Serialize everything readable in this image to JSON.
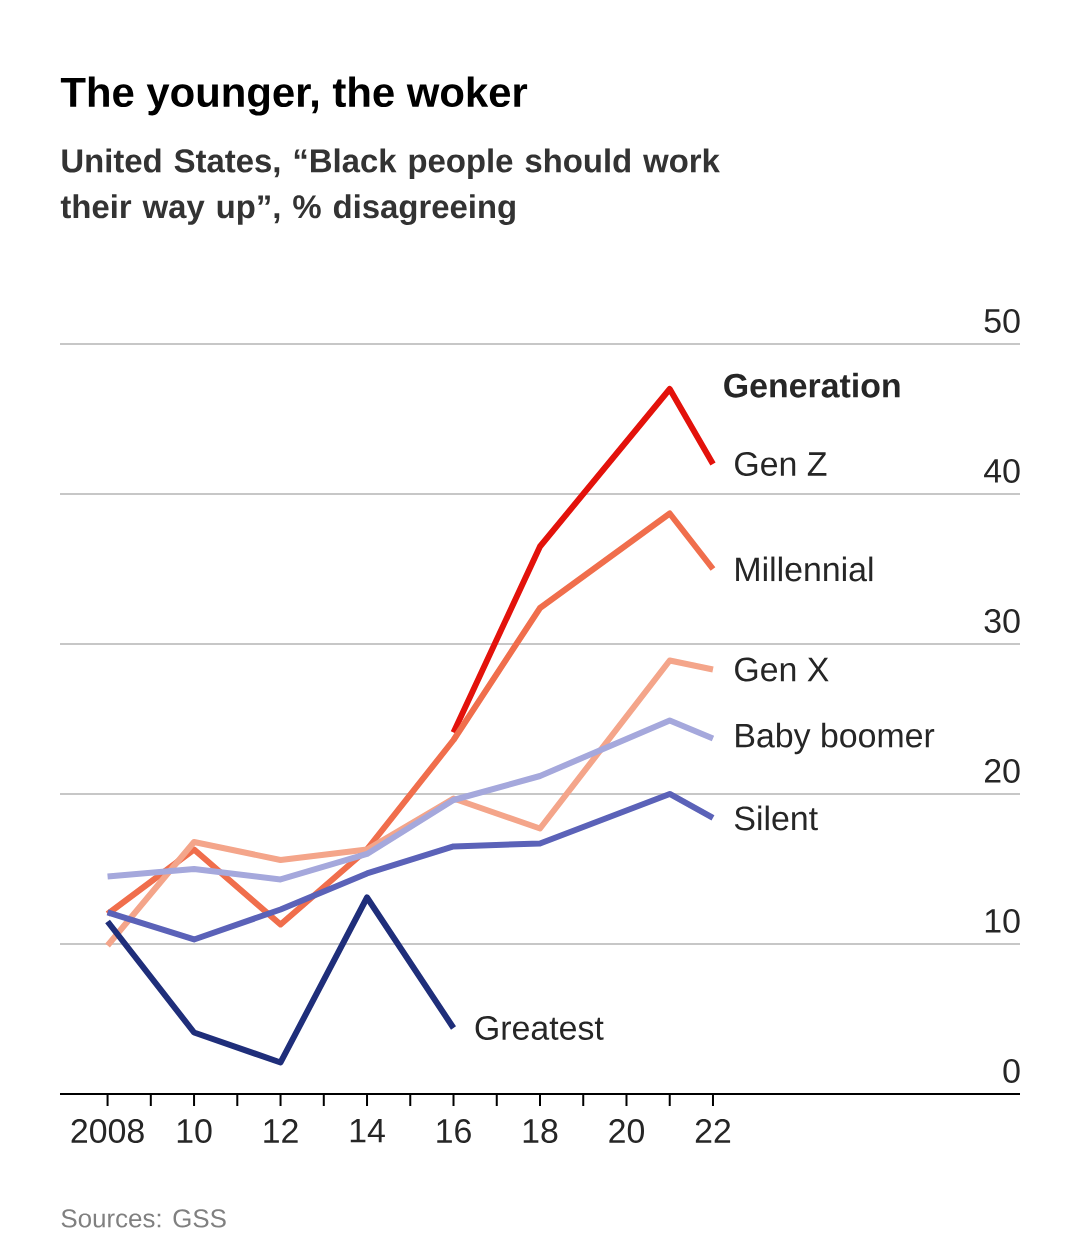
{
  "chart_data": {
    "type": "line",
    "title": "The younger, the woker",
    "subtitle": "United States, “Black people should work their way up”,  % disagreeing",
    "legend_title": "Generation",
    "x": [
      2008,
      2010,
      2012,
      2014,
      2016,
      2018,
      2021,
      2022
    ],
    "series": [
      {
        "name": "Gen Z",
        "color": "#e3120b",
        "values": [
          null,
          null,
          null,
          null,
          24.1,
          36.5,
          47,
          42
        ]
      },
      {
        "name": "Millennial",
        "color": "#f06e4c",
        "values": [
          12,
          16.3,
          11.3,
          16.3,
          23.6,
          32.4,
          38.7,
          35
        ]
      },
      {
        "name": "Gen X",
        "color": "#f4a58a",
        "values": [
          9.9,
          16.8,
          15.6,
          16.3,
          19.7,
          17.7,
          28.9,
          28.3
        ]
      },
      {
        "name": "Baby boomer",
        "color": "#a5a8dc",
        "values": [
          14.5,
          15,
          14.3,
          16,
          19.6,
          21.2,
          24.9,
          23.7
        ]
      },
      {
        "name": "Silent",
        "color": "#5b62b8",
        "values": [
          12.1,
          10.3,
          12.3,
          14.7,
          16.5,
          16.7,
          20,
          18.4
        ]
      },
      {
        "name": "Greatest",
        "color": "#1f2e7a",
        "values": [
          11.5,
          4.1,
          2.1,
          13.1,
          4.4,
          null,
          null,
          null
        ]
      }
    ],
    "xlim": [
      2006.9,
      2029.1
    ],
    "xticks": [
      {
        "value": 2008,
        "label": "2008"
      },
      {
        "value": 2009,
        "label": null
      },
      {
        "value": 2010,
        "label": "10"
      },
      {
        "value": 2011,
        "label": null
      },
      {
        "value": 2012,
        "label": "12"
      },
      {
        "value": 2013,
        "label": null
      },
      {
        "value": 2014,
        "label": "14"
      },
      {
        "value": 2015,
        "label": null
      },
      {
        "value": 2016,
        "label": "16"
      },
      {
        "value": 2017,
        "label": null
      },
      {
        "value": 2018,
        "label": "18"
      },
      {
        "value": 2019,
        "label": null
      },
      {
        "value": 2020,
        "label": "20"
      },
      {
        "value": 2021,
        "label": null
      },
      {
        "value": 2022,
        "label": "22"
      }
    ],
    "ylim": [
      0,
      50
    ],
    "yticks": [
      0,
      10,
      20,
      30,
      40,
      50
    ],
    "grid": "y",
    "legend": false,
    "marker": "none",
    "line_style": "solid",
    "annotations": [
      "Sources: GSS"
    ]
  }
}
